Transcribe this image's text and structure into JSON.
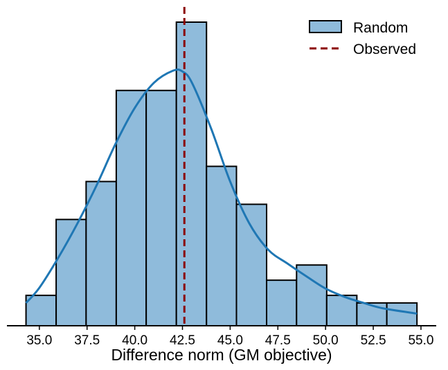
{
  "chart_data": {
    "type": "histogram",
    "xlabel": "Difference norm (GM objective)",
    "ylabel": "",
    "xlim": [
      33.3,
      55.8
    ],
    "ylim": [
      0,
      40
    ],
    "xticks": [
      "35.0",
      "37.5",
      "40.0",
      "42.5",
      "45.0",
      "47.5",
      "50.0",
      "52.5",
      "55.0"
    ],
    "bin_edges": [
      34.3,
      35.88,
      37.45,
      39.03,
      40.6,
      42.18,
      43.76,
      45.33,
      46.91,
      48.48,
      50.06,
      51.64,
      53.21,
      54.79
    ],
    "counts": [
      4,
      14,
      19,
      31,
      31,
      40,
      21,
      16,
      6,
      8,
      4,
      3,
      3
    ],
    "kde": {
      "x": [
        34.3,
        35.0,
        36.0,
        37.0,
        38.0,
        39.0,
        40.0,
        41.0,
        42.0,
        42.5,
        43.0,
        44.0,
        45.0,
        46.0,
        47.0,
        48.0,
        49.0,
        50.0,
        51.0,
        52.0,
        53.0,
        54.79
      ],
      "y": [
        3.0,
        5.0,
        9.0,
        13.5,
        18.5,
        24.0,
        28.7,
        32.0,
        33.6,
        33.5,
        32.0,
        26.0,
        19.0,
        13.5,
        10.0,
        8.2,
        6.5,
        4.9,
        3.8,
        3.0,
        2.3,
        1.6
      ]
    },
    "observed": 42.6,
    "grid": false,
    "legend": {
      "position": "top-right",
      "entries": [
        {
          "label": "Random",
          "kind": "bar"
        },
        {
          "label": "Observed",
          "kind": "dashed-line"
        }
      ]
    },
    "colors": {
      "bar_fill": "#8fbbdb",
      "bar_edge": "#000000",
      "kde_line": "#1f77b4",
      "observed_line": "#8b0000"
    }
  }
}
